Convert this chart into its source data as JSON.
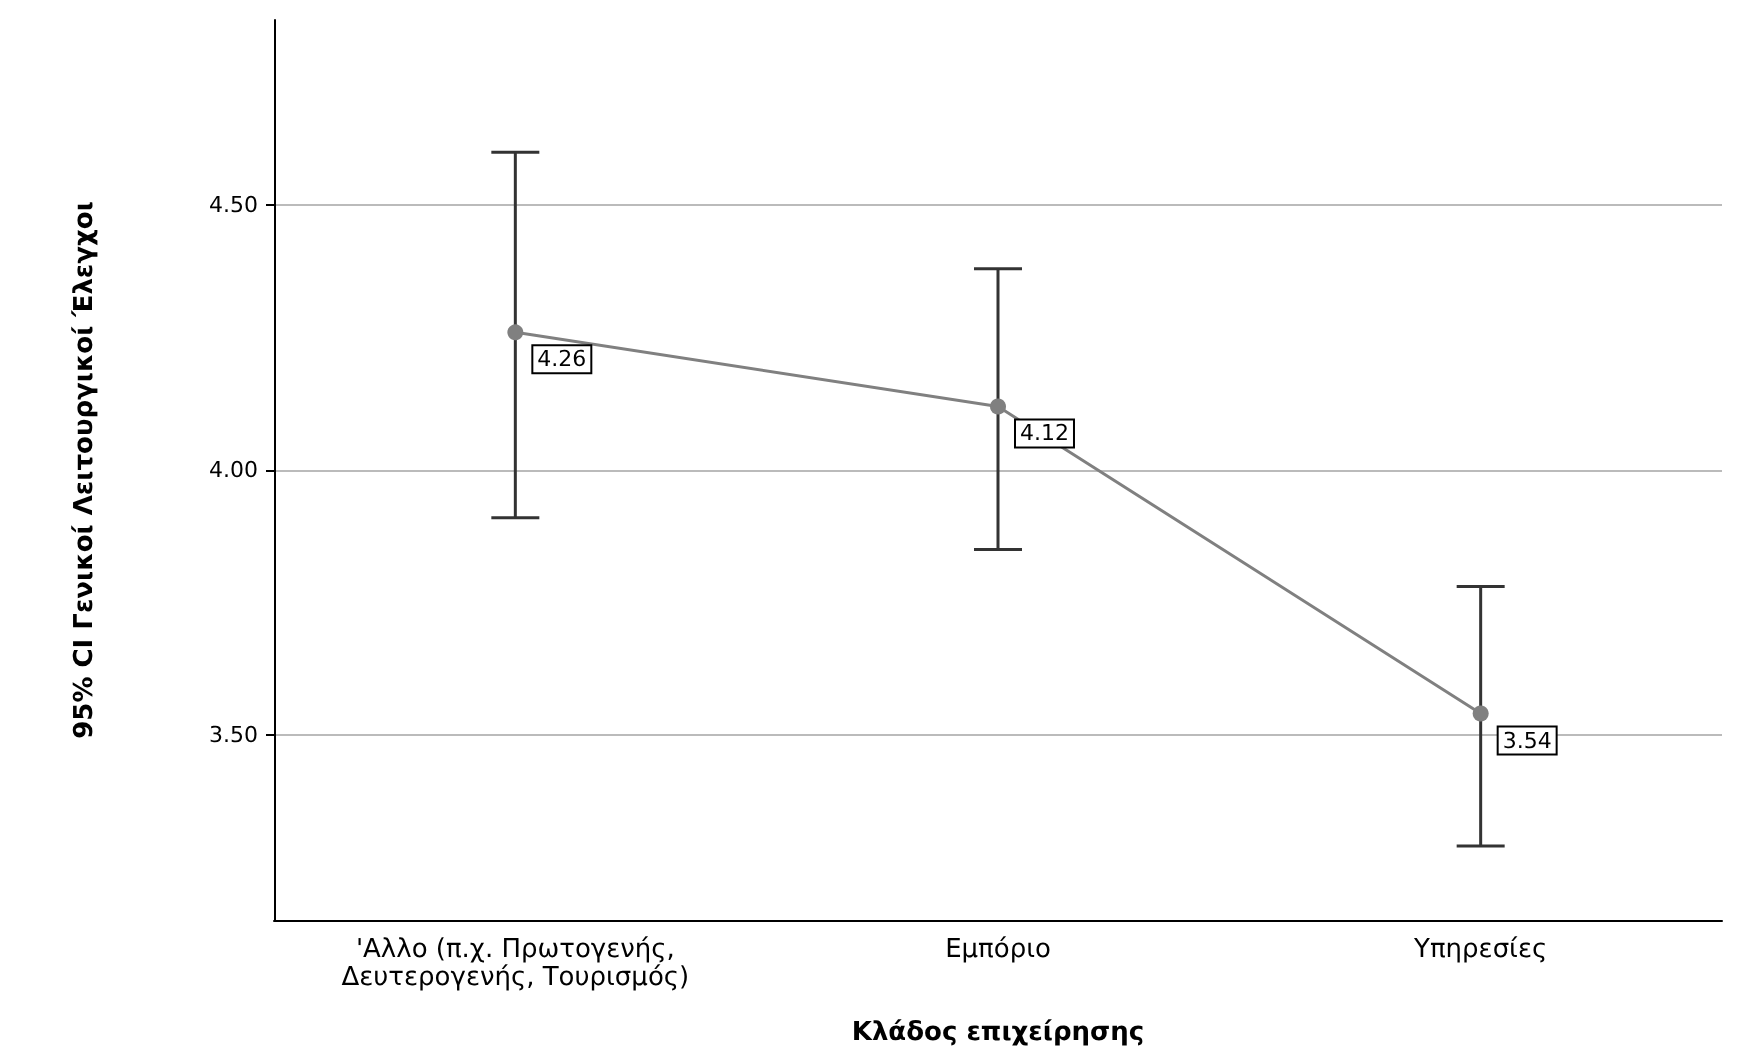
{
  "chart_data": {
    "type": "line",
    "xlabel": "Κλάδος επιχείρησης",
    "ylabel": "95% CI Γενικοί Λειτουργικοί Έλεγχοι",
    "categories": [
      "'Αλλο (π.χ. Πρωτογενής,\nΔευτερογενής, Τουρισμός)",
      "Εμπόριο",
      "Υπηρεσίες"
    ],
    "series": [
      {
        "color": "#808080",
        "values": [
          4.26,
          4.12,
          3.54
        ],
        "errors": [
          [
            3.91,
            4.6
          ],
          [
            3.85,
            4.38
          ],
          [
            3.29,
            3.78
          ]
        ]
      }
    ],
    "ylim": [
      3.15,
      4.85
    ],
    "yticks": [
      {
        "value": 3.5,
        "label": "3.50"
      },
      {
        "value": 4.0,
        "label": "4.00"
      },
      {
        "value": 4.5,
        "label": "4.50"
      }
    ],
    "grid": "y",
    "marker": "circle",
    "line_style": "solid",
    "data_labels": true
  }
}
